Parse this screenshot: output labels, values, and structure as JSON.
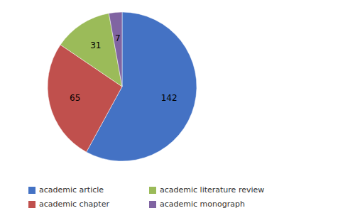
{
  "chart_data": {
    "type": "pie",
    "categories": [
      "academic article",
      "academic chapter",
      "academic literature review",
      "academic monograph"
    ],
    "values": [
      142,
      65,
      31,
      7
    ],
    "colors": [
      "#4472C4",
      "#C0504D",
      "#9BBB59",
      "#8064A2"
    ],
    "data_labels": true,
    "legend": "lower left"
  }
}
